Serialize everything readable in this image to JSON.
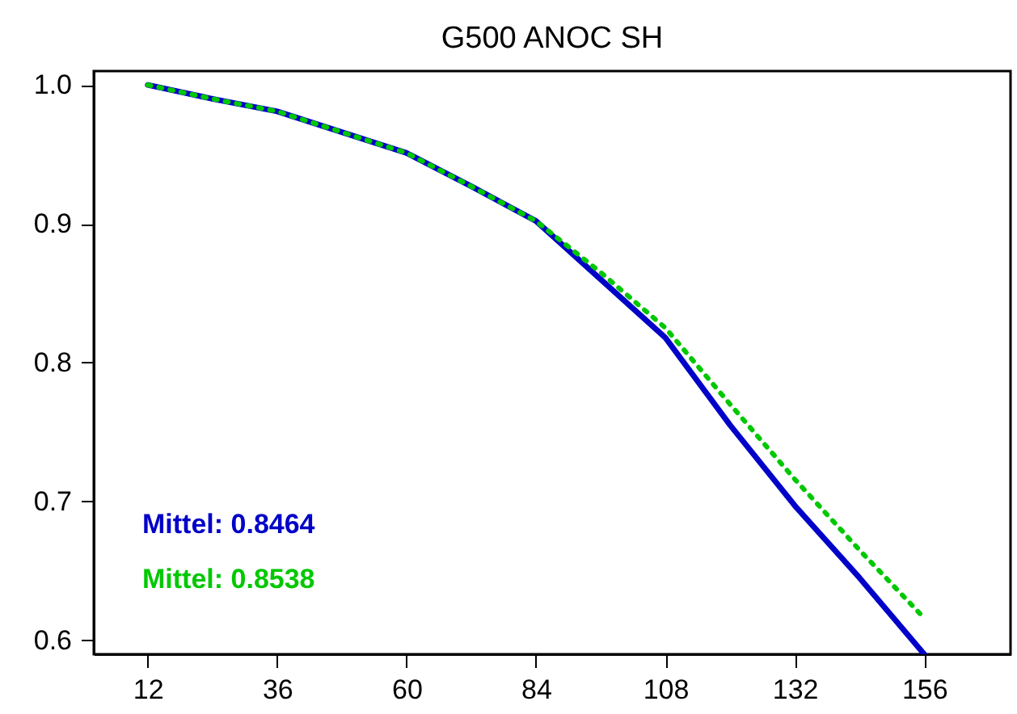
{
  "chart_data": {
    "type": "line",
    "title": "G500 ANOC SH",
    "x": [
      12,
      24,
      36,
      48,
      60,
      72,
      84,
      96,
      108,
      120,
      132,
      144,
      156
    ],
    "series": [
      {
        "name": "Mittel:  0.8464",
        "color": "#0000c8",
        "line_style": "solid",
        "values": [
          1.0,
          0.99,
          0.981,
          0.966,
          0.951,
          0.927,
          0.902,
          0.86,
          0.818,
          0.755,
          0.697,
          0.645,
          0.59
        ]
      },
      {
        "name": "Mittel:  0.8538",
        "color": "#00c800",
        "line_style": "dotted",
        "values": [
          1.0,
          0.99,
          0.981,
          0.966,
          0.951,
          0.927,
          0.902,
          0.865,
          0.825,
          0.77,
          0.716,
          0.665,
          0.616
        ]
      }
    ],
    "xlim": [
      2,
      172
    ],
    "xticks": [
      12,
      36,
      60,
      84,
      108,
      132,
      156
    ],
    "ylim": [
      0.59,
      1.01
    ],
    "yticks": [
      {
        "value": 0.6,
        "label": "0.6"
      },
      0.7,
      0.8,
      0.9,
      {
        "value": 1.0,
        "label": "1.0"
      }
    ],
    "legend": "bottom left",
    "grid": false
  }
}
